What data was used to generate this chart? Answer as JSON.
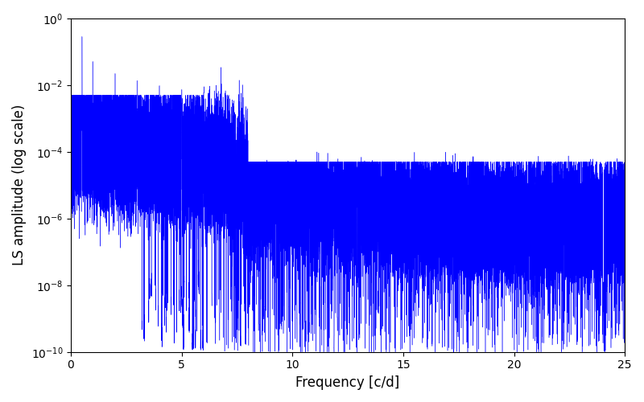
{
  "xlabel": "Frequency [c/d]",
  "ylabel": "LS amplitude (log scale)",
  "xlim": [
    0,
    25
  ],
  "ylim": [
    1e-10,
    1.0
  ],
  "xticks": [
    0,
    5,
    10,
    15,
    20,
    25
  ],
  "line_color": "#0000ff",
  "background_color": "#ffffff",
  "freq_max": 25.0,
  "n_points": 80000,
  "seed": 12345,
  "figsize": [
    8.0,
    5.0
  ],
  "dpi": 100
}
